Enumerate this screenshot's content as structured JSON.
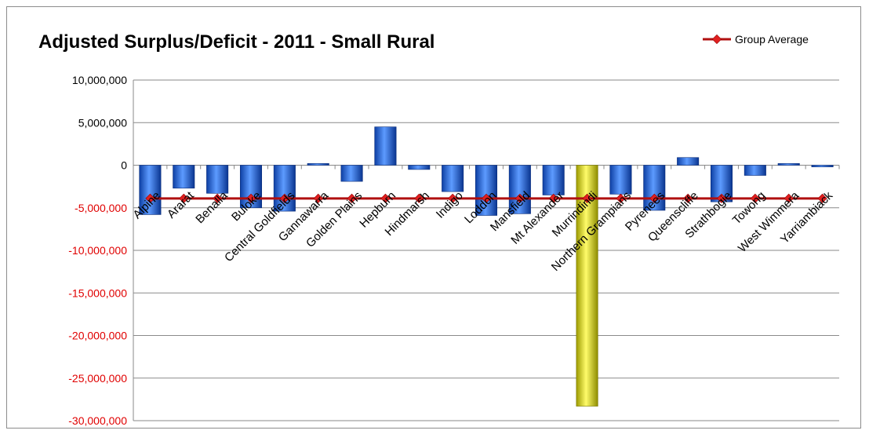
{
  "chart_data": {
    "type": "bar",
    "title": "Adjusted Surplus/Deficit - 2011 - Small Rural",
    "xlabel": "",
    "ylabel": "",
    "ylim": [
      -30000000,
      10000000
    ],
    "yticks": [
      10000000,
      5000000,
      0,
      -5000000,
      -10000000,
      -15000000,
      -20000000,
      -25000000,
      -30000000
    ],
    "ytick_labels": [
      "10,000,000",
      "5,000,000",
      "0",
      "-5,000,000",
      "-10,000,000",
      "-15,000,000",
      "-20,000,000",
      "-25,000,000",
      "-30,000,000"
    ],
    "grid": "horizontal",
    "legend_position": "top-right",
    "categories": [
      "Alpine",
      "Ararat",
      "Benalla",
      "Buloke",
      "Central Goldfields",
      "Gannawarra",
      "Golden Plains",
      "Hepburn",
      "Hindmarsh",
      "Indigo",
      "Loddon",
      "Mansfield",
      "Mt Alexander",
      "Murrindindi",
      "Northern Grampians",
      "Pyrenees",
      "Queenscliffe",
      "Strathbogie",
      "Towong",
      "West Wimmera",
      "Yarriambiack"
    ],
    "series": [
      {
        "type": "bar",
        "values": [
          -5800000,
          -2700000,
          -3300000,
          -5000000,
          -5400000,
          200000,
          -1900000,
          4500000,
          -500000,
          -3100000,
          -5900000,
          -5700000,
          -3500000,
          -28300000,
          -3400000,
          -5300000,
          900000,
          -4300000,
          -1200000,
          200000,
          -200000
        ]
      },
      {
        "name": "Group Average",
        "type": "line",
        "values": [
          -3900000,
          -3900000,
          -3900000,
          -3900000,
          -3900000,
          -3900000,
          -3900000,
          -3900000,
          -3900000,
          -3900000,
          -3900000,
          -3900000,
          -3900000,
          -3900000,
          -3900000,
          -3900000,
          -3900000,
          -3900000,
          -3900000,
          -3900000,
          -3900000
        ]
      }
    ],
    "colors": {
      "bar": "#1f5fd6",
      "bar_highlight": "#f0ee12",
      "line": "#b01010",
      "positive_tick": "#000000",
      "negative_tick": "#e00000"
    },
    "highlighted_category": "Murrindindi"
  }
}
